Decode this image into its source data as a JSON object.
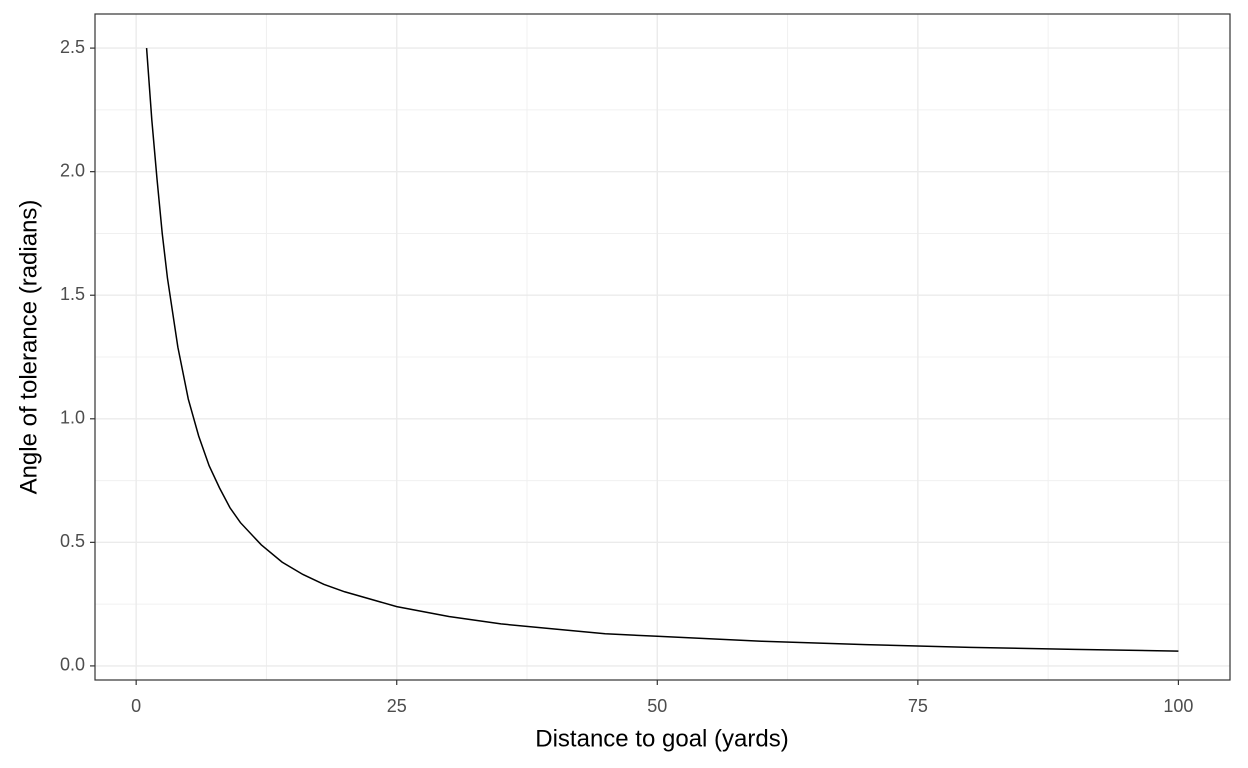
{
  "chart_data": {
    "type": "line",
    "x_label": "Distance to goal (yards)",
    "y_label": "Angle of tolerance (radians)",
    "x": [
      1,
      1.5,
      2,
      2.5,
      3,
      4,
      5,
      6,
      7,
      8,
      9,
      10,
      12,
      14,
      16,
      18,
      20,
      25,
      30,
      35,
      40,
      45,
      50,
      60,
      70,
      80,
      90,
      100
    ],
    "series": [
      {
        "name": "angle",
        "color": "#000000",
        "values": [
          2.5,
          2.21,
          1.97,
          1.75,
          1.57,
          1.29,
          1.08,
          0.93,
          0.81,
          0.72,
          0.64,
          0.58,
          0.49,
          0.42,
          0.37,
          0.33,
          0.3,
          0.24,
          0.2,
          0.17,
          0.15,
          0.13,
          0.12,
          0.1,
          0.086,
          0.075,
          0.067,
          0.06
        ]
      }
    ],
    "xlim": [
      -3.95,
      104.95
    ],
    "ylim": [
      -0.057,
      2.638
    ],
    "xticks": [
      0,
      25,
      50,
      75,
      100
    ],
    "yticks": [
      {
        "value": 0,
        "label": "0.0"
      },
      0.5,
      {
        "value": 1,
        "label": "1.0"
      },
      1.5,
      {
        "value": 2,
        "label": "2.0"
      },
      2.5
    ],
    "grid": true
  }
}
